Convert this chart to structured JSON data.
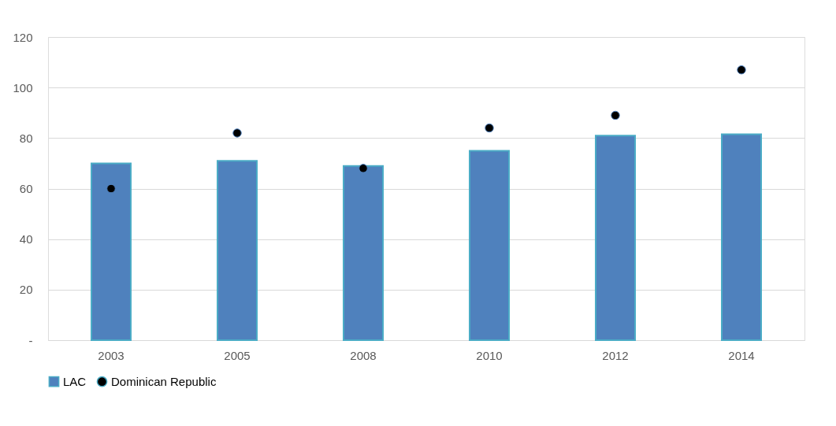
{
  "chart_data": {
    "type": "bar",
    "categories": [
      "2003",
      "2005",
      "2008",
      "2010",
      "2012",
      "2014"
    ],
    "series": [
      {
        "name": "LAC",
        "color": "#4f81bd",
        "values": [
          70,
          71,
          69,
          75,
          81,
          81.5
        ]
      },
      {
        "name": "Dominican Republic",
        "type": "scatter",
        "color": "#000000",
        "values": [
          60,
          82,
          68,
          84,
          89,
          107
        ]
      }
    ],
    "ylim": [
      0,
      120
    ],
    "yticks": [
      {
        "value": 0,
        "label": "-"
      },
      20,
      40,
      60,
      80,
      100,
      120
    ],
    "grid": "y",
    "legend": "bottom",
    "marker": "circle"
  }
}
